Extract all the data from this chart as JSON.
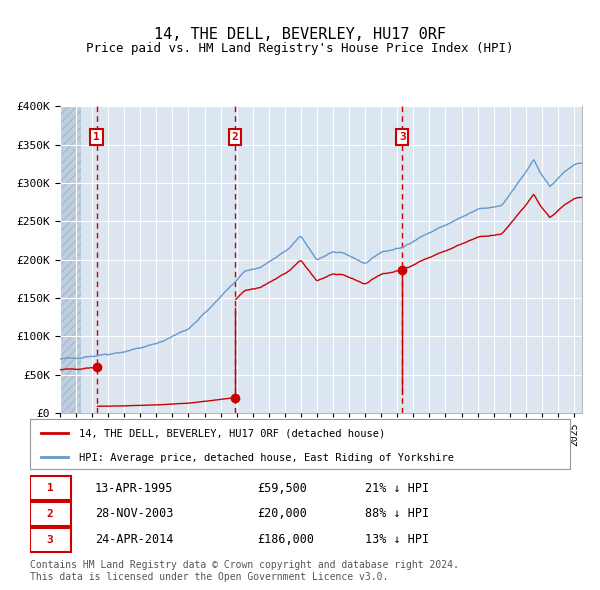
{
  "title": "14, THE DELL, BEVERLEY, HU17 0RF",
  "subtitle": "Price paid vs. HM Land Registry's House Price Index (HPI)",
  "ylim": [
    0,
    400000
  ],
  "yticks": [
    0,
    50000,
    100000,
    150000,
    200000,
    250000,
    300000,
    350000,
    400000
  ],
  "ytick_labels": [
    "£0",
    "£50K",
    "£100K",
    "£150K",
    "£200K",
    "£250K",
    "£300K",
    "£350K",
    "£400K"
  ],
  "bg_color": "#dce6f1",
  "hatch_color": "#c0cfe0",
  "grid_color": "#ffffff",
  "sale_dates_num": [
    1995.28,
    2003.91,
    2014.31
  ],
  "sale_prices": [
    59500,
    20000,
    186000
  ],
  "legend_house": "14, THE DELL, BEVERLEY, HU17 0RF (detached house)",
  "legend_hpi": "HPI: Average price, detached house, East Riding of Yorkshire",
  "table_data": [
    {
      "num": "1",
      "date": "13-APR-1995",
      "price": "£59,500",
      "rel": "21% ↓ HPI"
    },
    {
      "num": "2",
      "date": "28-NOV-2003",
      "price": "£20,000",
      "rel": "88% ↓ HPI"
    },
    {
      "num": "3",
      "date": "24-APR-2014",
      "price": "£186,000",
      "rel": "13% ↓ HPI"
    }
  ],
  "footer": "Contains HM Land Registry data © Crown copyright and database right 2024.\nThis data is licensed under the Open Government Licence v3.0.",
  "sale_line_color": "#cc0000",
  "sale_dot_color": "#cc0000",
  "hpi_line_color": "#6699cc",
  "vline_color": "#cc0000",
  "label_box_color": "#cc0000",
  "hpi_anchors_t": [
    1993.0,
    1995.3,
    1997.0,
    1999.0,
    2001.0,
    2002.5,
    2004.5,
    2005.5,
    2007.0,
    2008.0,
    2009.0,
    2010.0,
    2011.0,
    2012.0,
    2013.0,
    2014.3,
    2015.0,
    2016.0,
    2017.5,
    2019.0,
    2020.5,
    2021.5,
    2022.5,
    2023.0,
    2023.5,
    2024.0,
    2024.5,
    2025.0
  ],
  "hpi_anchors_v": [
    70000,
    75000,
    80000,
    90000,
    110000,
    140000,
    185000,
    190000,
    210000,
    230000,
    200000,
    210000,
    205000,
    195000,
    210000,
    215000,
    225000,
    235000,
    250000,
    265000,
    270000,
    300000,
    330000,
    310000,
    295000,
    305000,
    315000,
    325000
  ]
}
